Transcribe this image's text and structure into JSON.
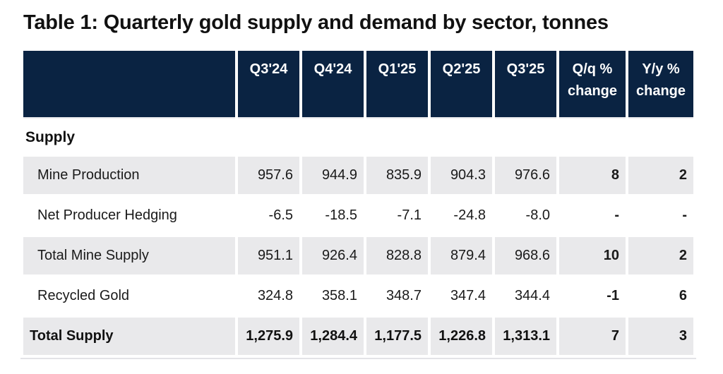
{
  "title": "Table 1: Quarterly gold supply and demand by sector, tonnes",
  "colors": {
    "header_bg": "#0a2342",
    "row_stripe": "#e9e9eb",
    "text": "#1a1a1a"
  },
  "table": {
    "columns": [
      "",
      "Q3'24",
      "Q4'24",
      "Q1'25",
      "Q2'25",
      "Q3'25",
      "Q/q % change",
      "Y/y % change"
    ],
    "section": "Supply",
    "rows": [
      {
        "label": "Mine Production",
        "values": [
          "957.6",
          "944.9",
          "835.9",
          "904.3",
          "976.6"
        ],
        "qq": "8",
        "yy": "2"
      },
      {
        "label": "Net Producer Hedging",
        "values": [
          "-6.5",
          "-18.5",
          "-7.1",
          "-24.8",
          "-8.0"
        ],
        "qq": "-",
        "yy": "-"
      },
      {
        "label": "Total Mine Supply",
        "values": [
          "951.1",
          "926.4",
          "828.8",
          "879.4",
          "968.6"
        ],
        "qq": "10",
        "yy": "2"
      },
      {
        "label": "Recycled Gold",
        "values": [
          "324.8",
          "358.1",
          "348.7",
          "347.4",
          "344.4"
        ],
        "qq": "-1",
        "yy": "6"
      },
      {
        "label": "Total Supply",
        "values": [
          "1,275.9",
          "1,284.4",
          "1,177.5",
          "1,226.8",
          "1,313.1"
        ],
        "qq": "7",
        "yy": "3"
      }
    ]
  }
}
